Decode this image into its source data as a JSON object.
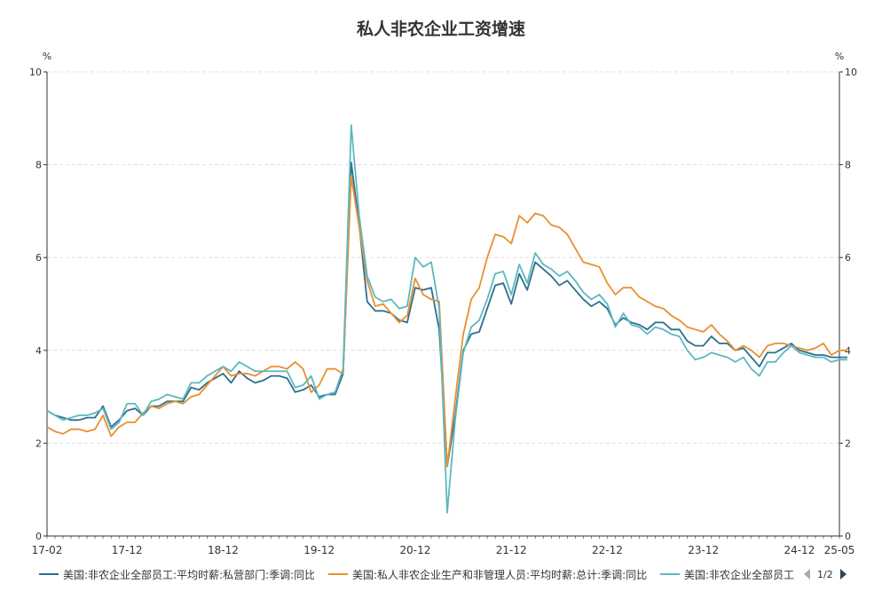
{
  "chart_data": {
    "type": "line",
    "title": "私人非农企业工资增速",
    "y_unit_left": "%",
    "y_unit_right": "%",
    "ylim": [
      0,
      10
    ],
    "yticks": [
      "0",
      "2",
      "4",
      "6",
      "8",
      "10"
    ],
    "x_start": "2017-02",
    "x_end": "2025-05",
    "xtick_labels": [
      "17-02",
      "17-12",
      "18-12",
      "19-12",
      "20-12",
      "21-12",
      "22-12",
      "23-12",
      "24-12",
      "25-05"
    ],
    "grid": true,
    "legend_position": "bottom",
    "legend_page": "1/2",
    "series": [
      {
        "name": "美国:非农企业全部员工:平均时薪:私营部门:季调:同比",
        "color": "#2c6f8f",
        "values": [
          2.7,
          2.6,
          2.55,
          2.5,
          2.5,
          2.55,
          2.55,
          2.8,
          2.35,
          2.5,
          2.7,
          2.75,
          2.6,
          2.8,
          2.8,
          2.9,
          2.9,
          2.9,
          3.2,
          3.15,
          3.3,
          3.4,
          3.5,
          3.3,
          3.55,
          3.4,
          3.3,
          3.35,
          3.45,
          3.45,
          3.4,
          3.1,
          3.15,
          3.25,
          3.0,
          3.05,
          3.05,
          3.5,
          8.05,
          6.7,
          5.05,
          4.85,
          4.85,
          4.8,
          4.65,
          4.6,
          5.35,
          5.3,
          5.35,
          4.45,
          1.5,
          2.6,
          4.0,
          4.35,
          4.4,
          4.9,
          5.4,
          5.45,
          5.0,
          5.65,
          5.3,
          5.9,
          5.75,
          5.6,
          5.4,
          5.5,
          5.3,
          5.1,
          4.95,
          5.05,
          4.9,
          4.55,
          4.7,
          4.6,
          4.55,
          4.45,
          4.6,
          4.6,
          4.45,
          4.45,
          4.2,
          4.1,
          4.1,
          4.3,
          4.15,
          4.15,
          4.0,
          4.05,
          3.85,
          3.65,
          3.95,
          3.95,
          4.05,
          4.15,
          4.0,
          3.95,
          3.9,
          3.9,
          3.85,
          3.85,
          3.85
        ]
      },
      {
        "name": "美国:私人非农企业生产和非管理人员:平均时薪:总计:季调:同比",
        "color": "#e8902f",
        "values": [
          2.35,
          2.25,
          2.2,
          2.3,
          2.3,
          2.25,
          2.3,
          2.6,
          2.15,
          2.35,
          2.45,
          2.45,
          2.65,
          2.8,
          2.75,
          2.85,
          2.9,
          2.85,
          3.0,
          3.05,
          3.25,
          3.45,
          3.65,
          3.45,
          3.5,
          3.5,
          3.45,
          3.55,
          3.65,
          3.65,
          3.6,
          3.75,
          3.6,
          3.1,
          3.25,
          3.6,
          3.6,
          3.5,
          7.75,
          6.65,
          5.5,
          4.95,
          5.0,
          4.8,
          4.6,
          4.75,
          5.55,
          5.2,
          5.1,
          5.05,
          1.5,
          2.95,
          4.35,
          5.1,
          5.35,
          6.0,
          6.5,
          6.45,
          6.3,
          6.9,
          6.75,
          6.95,
          6.9,
          6.7,
          6.65,
          6.5,
          6.2,
          5.9,
          5.85,
          5.8,
          5.45,
          5.2,
          5.35,
          5.35,
          5.15,
          5.05,
          4.95,
          4.9,
          4.75,
          4.65,
          4.5,
          4.45,
          4.4,
          4.55,
          4.35,
          4.2,
          4.0,
          4.1,
          4.0,
          3.85,
          4.1,
          4.15,
          4.15,
          4.1,
          4.05,
          4.0,
          4.05,
          4.15,
          3.9,
          4.0,
          4.0
        ]
      },
      {
        "name": "美国:非农企业全部员工",
        "color": "#5db8c2",
        "values": [
          2.7,
          2.6,
          2.5,
          2.55,
          2.6,
          2.6,
          2.65,
          2.75,
          2.3,
          2.45,
          2.85,
          2.85,
          2.6,
          2.9,
          2.95,
          3.05,
          3.0,
          2.95,
          3.3,
          3.3,
          3.45,
          3.55,
          3.65,
          3.55,
          3.75,
          3.65,
          3.55,
          3.55,
          3.55,
          3.55,
          3.55,
          3.2,
          3.25,
          3.45,
          2.95,
          3.05,
          3.1,
          3.6,
          8.85,
          6.9,
          5.6,
          5.15,
          5.05,
          5.1,
          4.9,
          4.95,
          6.0,
          5.8,
          5.9,
          4.9,
          0.5,
          2.5,
          3.95,
          4.5,
          4.65,
          5.1,
          5.65,
          5.7,
          5.2,
          5.85,
          5.45,
          6.1,
          5.85,
          5.75,
          5.6,
          5.7,
          5.5,
          5.25,
          5.1,
          5.2,
          5.0,
          4.5,
          4.8,
          4.55,
          4.5,
          4.35,
          4.5,
          4.45,
          4.35,
          4.3,
          4.0,
          3.8,
          3.85,
          3.95,
          3.9,
          3.85,
          3.75,
          3.85,
          3.6,
          3.45,
          3.75,
          3.75,
          3.95,
          4.1,
          3.95,
          3.9,
          3.85,
          3.85,
          3.75,
          3.8,
          3.8
        ]
      }
    ]
  }
}
